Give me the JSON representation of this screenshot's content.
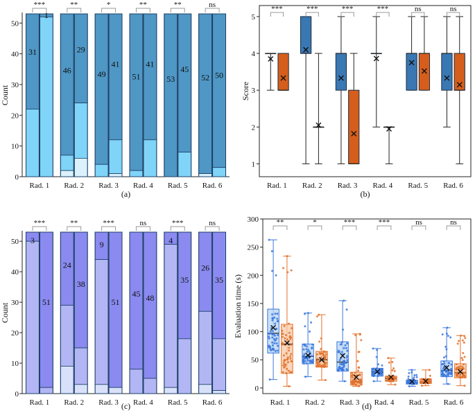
{
  "colors": {
    "a_dark": "#4f97c5",
    "a_light": "#7fd4f8",
    "a_pale": "#dbf2fd",
    "b_blue": "#3a78b3",
    "b_orange": "#d55e1c",
    "c_dark": "#8a8af0",
    "c_mid": "#b3b6f4",
    "c_light": "#d9e1fa",
    "d_blue": "#3b78dd",
    "d_blue_fill": "#b7d4f3",
    "d_orange": "#e3712b",
    "d_orange_fill": "#f7c9a7"
  },
  "chart_data": [
    {
      "id": "a",
      "type": "bar",
      "caption": "(a)",
      "ylabel": "Count",
      "xlabel": "",
      "ylim": [
        0,
        53
      ],
      "yticks": [
        0,
        10,
        20,
        30,
        40,
        50
      ],
      "categories": [
        "Rad. 1",
        "Rad. 2",
        "Rad. 3",
        "Rad. 4",
        "Rad. 5",
        "Rad. 6"
      ],
      "significance": [
        "***",
        "**",
        "*",
        "**",
        "**",
        "ns"
      ],
      "bars": [
        [
          {
            "stack": [
              22,
              31,
              0
            ],
            "label": "31"
          },
          {
            "stack": [
              52,
              1,
              0
            ],
            "label": "1"
          }
        ],
        [
          {
            "stack": [
              5,
              46,
              2
            ],
            "label": "46"
          },
          {
            "stack": [
              18,
              29,
              6
            ],
            "label": "29"
          }
        ],
        [
          {
            "stack": [
              4,
              49,
              0
            ],
            "label": "49"
          },
          {
            "stack": [
              11,
              41,
              1
            ],
            "label": "41"
          }
        ],
        [
          {
            "stack": [
              2,
              51,
              0
            ],
            "label": "51"
          },
          {
            "stack": [
              12,
              41,
              0
            ],
            "label": "41"
          }
        ],
        [
          {
            "stack": [
              0,
              53,
              0
            ],
            "label": "53"
          },
          {
            "stack": [
              8,
              45,
              0
            ],
            "label": "45"
          }
        ],
        [
          {
            "stack": [
              0,
              52,
              1
            ],
            "label": "52"
          },
          {
            "stack": [
              3,
              50,
              0
            ],
            "label": "50"
          }
        ]
      ]
    },
    {
      "id": "b",
      "type": "box",
      "caption": "(b)",
      "ylabel": "Score",
      "xlabel": "",
      "ylim": [
        0.65,
        5.3
      ],
      "yticks": [
        1,
        2,
        3,
        4,
        5
      ],
      "categories": [
        "Rad. 1",
        "Rad. 2",
        "Rad. 3",
        "Rad. 4",
        "Rad. 5",
        "Rad. 6"
      ],
      "significance": [
        "***",
        "***",
        "***",
        "***",
        "ns",
        "ns"
      ],
      "series": [
        {
          "name": "blue",
          "boxes": [
            {
              "min": 3,
              "q1": 4,
              "median": 4,
              "q3": 4,
              "max": 4,
              "mean": 3.85
            },
            {
              "min": 1,
              "q1": 4,
              "median": 4,
              "q3": 5,
              "max": 5,
              "mean": 4.1
            },
            {
              "min": 1,
              "q1": 3,
              "median": 4,
              "q3": 4,
              "max": 5,
              "mean": 3.33
            },
            {
              "min": 2,
              "q1": 4,
              "median": 4,
              "q3": 4,
              "max": 5,
              "mean": 3.86
            },
            {
              "min": 3,
              "q1": 3,
              "median": 4,
              "q3": 4,
              "max": 5,
              "mean": 3.75
            },
            {
              "min": 2,
              "q1": 3,
              "median": 4,
              "q3": 4,
              "max": 5,
              "mean": 3.33
            }
          ]
        },
        {
          "name": "orange",
          "boxes": [
            {
              "min": 3,
              "q1": 3,
              "median": 3,
              "q3": 4,
              "max": 4,
              "mean": 3.33
            },
            {
              "min": 1,
              "q1": 2,
              "median": 2,
              "q3": 2,
              "max": 4,
              "mean": 2.05
            },
            {
              "min": 1,
              "q1": 1,
              "median": 1,
              "q3": 3,
              "max": 4,
              "mean": 1.82
            },
            {
              "min": 1,
              "q1": 2,
              "median": 2,
              "q3": 2,
              "max": 2,
              "mean": 1.95
            },
            {
              "min": 3,
              "q1": 3,
              "median": 4,
              "q3": 4,
              "max": 5,
              "mean": 3.52
            },
            {
              "min": 1,
              "q1": 3,
              "median": 3,
              "q3": 4,
              "max": 5,
              "mean": 3.15
            }
          ]
        }
      ]
    },
    {
      "id": "c",
      "type": "bar",
      "caption": "(c)",
      "ylabel": "Count",
      "xlabel": "",
      "ylim": [
        0,
        53
      ],
      "yticks": [
        0,
        10,
        20,
        30,
        40,
        50
      ],
      "categories": [
        "Rad. 1",
        "Rad. 2",
        "Rad. 3",
        "Rad. 4",
        "Rad. 5",
        "Rad. 6"
      ],
      "significance": [
        "***",
        "**",
        "***",
        "ns",
        "***",
        "ns"
      ],
      "bars": [
        [
          {
            "stack": [
              50,
              3,
              0
            ],
            "label": "3"
          },
          {
            "stack": [
              2,
              51,
              0
            ],
            "label": "51"
          }
        ],
        [
          {
            "stack": [
              20,
              24,
              9
            ],
            "label": "24"
          },
          {
            "stack": [
              12,
              38,
              3
            ],
            "label": "38"
          }
        ],
        [
          {
            "stack": [
              41,
              9,
              3
            ],
            "label": "9"
          },
          {
            "stack": [
              0,
              51,
              2
            ],
            "label": "51"
          }
        ],
        [
          {
            "stack": [
              8,
              45,
              0
            ],
            "label": "45"
          },
          {
            "stack": [
              5,
              48,
              0
            ],
            "label": "48"
          }
        ],
        [
          {
            "stack": [
              47,
              4,
              2
            ],
            "label": "4"
          },
          {
            "stack": [
              18,
              35,
              0
            ],
            "label": "35"
          }
        ],
        [
          {
            "stack": [
              24,
              26,
              3
            ],
            "label": "26"
          },
          {
            "stack": [
              17,
              35,
              1
            ],
            "label": "35"
          }
        ]
      ]
    },
    {
      "id": "d",
      "type": "box",
      "caption": "(d)",
      "ylabel": "Evaluation time (s)",
      "xlabel": "",
      "ylim": [
        -10,
        300
      ],
      "yticks": [
        0,
        50,
        100,
        150,
        200,
        250,
        300
      ],
      "categories": [
        "Rad. 1",
        "Rad. 2",
        "Rad. 3",
        "Rad. 4",
        "Rad. 5",
        "Rad. 6"
      ],
      "significance": [
        "**",
        "*",
        "***",
        "***",
        "ns",
        "ns"
      ],
      "series": [
        {
          "name": "blue",
          "boxes": [
            {
              "min": 15,
              "q1": 62,
              "median": 97,
              "q3": 140,
              "max": 263,
              "mean": 107
            },
            {
              "min": 20,
              "q1": 43,
              "median": 56,
              "q3": 78,
              "max": 133,
              "mean": 58
            },
            {
              "min": 12,
              "q1": 30,
              "median": 46,
              "q3": 82,
              "max": 155,
              "mean": 57
            },
            {
              "min": 12,
              "q1": 21,
              "median": 28,
              "q3": 35,
              "max": 70,
              "mean": 29
            },
            {
              "min": 3,
              "q1": 7,
              "median": 10,
              "q3": 14,
              "max": 32,
              "mean": 11
            },
            {
              "min": 7,
              "q1": 20,
              "median": 31,
              "q3": 48,
              "max": 107,
              "mean": 36
            }
          ]
        },
        {
          "name": "orange",
          "boxes": [
            {
              "min": 3,
              "q1": 26,
              "median": 78,
              "q3": 113,
              "max": 234,
              "mean": 80
            },
            {
              "min": 14,
              "q1": 37,
              "median": 50,
              "q3": 65,
              "max": 130,
              "mean": 50
            },
            {
              "min": 3,
              "q1": 5,
              "median": 11,
              "q3": 28,
              "max": 96,
              "mean": 19
            },
            {
              "min": 6,
              "q1": 12,
              "median": 17,
              "q3": 21,
              "max": 53,
              "mean": 19
            },
            {
              "min": 4,
              "q1": 8,
              "median": 11,
              "q3": 16,
              "max": 32,
              "mean": 12
            },
            {
              "min": 4,
              "q1": 18,
              "median": 27,
              "q3": 43,
              "max": 93,
              "mean": 29
            }
          ]
        }
      ]
    }
  ]
}
